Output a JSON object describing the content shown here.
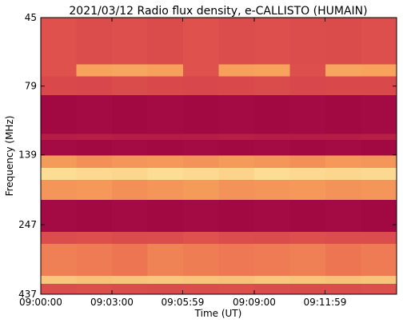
{
  "chart_data": {
    "type": "heatmap",
    "title": "2021/03/12  Radio flux density, e-CALLISTO (HUMAIN)",
    "xlabel": "Time (UT)",
    "ylabel": "Frequency (MHz)",
    "xlim": [
      32400,
      33300
    ],
    "xticks": [
      {
        "value": 32400,
        "label": "09:00:00"
      },
      {
        "value": 32580,
        "label": "09:03:00"
      },
      {
        "value": 32759,
        "label": "09:05:59"
      },
      {
        "value": 32940,
        "label": "09:09:00"
      },
      {
        "value": 33119,
        "label": "09:11:59"
      }
    ],
    "ylim": [
      45,
      437
    ],
    "yscale": "log",
    "y_inverted": true,
    "yticks": [
      45,
      79,
      139,
      247,
      437
    ],
    "x_edges": [
      32400,
      32490,
      32580,
      32670,
      32760,
      32850,
      32940,
      33030,
      33120,
      33210,
      33300
    ],
    "y_edges": [
      45,
      66,
      73,
      85,
      117,
      123,
      140,
      155,
      171,
      201,
      262,
      289,
      376,
      401,
      437
    ],
    "colormap": [
      "#9b0041",
      "#c8304a",
      "#e8604e",
      "#f7a35c",
      "#fdf3a8"
    ],
    "values": [
      [
        0.42,
        0.4,
        0.41,
        0.39,
        0.42,
        0.4,
        0.41,
        0.4,
        0.39,
        0.41
      ],
      [
        0.42,
        0.75,
        0.76,
        0.74,
        0.42,
        0.74,
        0.75,
        0.41,
        0.76,
        0.75
      ],
      [
        0.38,
        0.37,
        0.39,
        0.38,
        0.37,
        0.38,
        0.39,
        0.37,
        0.38,
        0.38
      ],
      [
        0.04,
        0.05,
        0.04,
        0.05,
        0.04,
        0.05,
        0.04,
        0.05,
        0.04,
        0.05
      ],
      [
        0.15,
        0.16,
        0.15,
        0.14,
        0.15,
        0.16,
        0.15,
        0.14,
        0.15,
        0.16
      ],
      [
        0.05,
        0.04,
        0.05,
        0.04,
        0.05,
        0.04,
        0.05,
        0.04,
        0.05,
        0.04
      ],
      [
        0.72,
        0.68,
        0.7,
        0.71,
        0.69,
        0.72,
        0.7,
        0.68,
        0.71,
        0.7
      ],
      [
        0.93,
        0.92,
        0.91,
        0.93,
        0.92,
        0.9,
        0.93,
        0.92,
        0.91,
        0.92
      ],
      [
        0.7,
        0.71,
        0.68,
        0.7,
        0.72,
        0.69,
        0.7,
        0.71,
        0.69,
        0.7
      ],
      [
        0.05,
        0.04,
        0.05,
        0.04,
        0.05,
        0.04,
        0.05,
        0.04,
        0.05,
        0.04
      ],
      [
        0.4,
        0.41,
        0.39,
        0.4,
        0.42,
        0.4,
        0.39,
        0.41,
        0.4,
        0.4
      ],
      [
        0.62,
        0.6,
        0.58,
        0.63,
        0.61,
        0.59,
        0.6,
        0.62,
        0.58,
        0.6
      ],
      [
        0.86,
        0.84,
        0.85,
        0.86,
        0.85,
        0.84,
        0.86,
        0.85,
        0.84,
        0.85
      ],
      [
        0.4,
        0.41,
        0.4,
        0.39,
        0.4,
        0.41,
        0.4,
        0.39,
        0.4,
        0.41
      ]
    ]
  }
}
